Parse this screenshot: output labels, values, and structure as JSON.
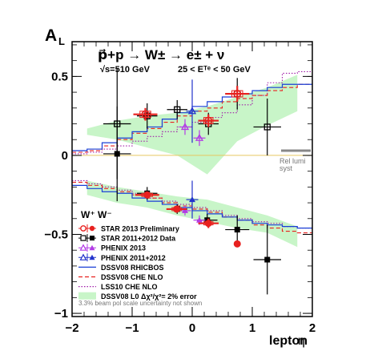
{
  "chart_data": {
    "type": "scatter",
    "title": "p⃗+p → W± → e± + ν",
    "subtitle_left": "√s=510 GeV",
    "subtitle_right": "25 < Eᵀᵉ < 50 GeV",
    "ylabel": "A",
    "ylabel_sub": "L",
    "xlabel": "lepton",
    "xlabel_symbol": "η",
    "xlim": [
      -2,
      2
    ],
    "ylim": [
      -1.02,
      0.72
    ],
    "xticks": [
      -2,
      -1,
      0,
      1,
      2
    ],
    "yticks": [
      -1,
      -0.5,
      0,
      0.5
    ],
    "ytick_labels": [
      "−1",
      "−0.5",
      "0",
      "0.5"
    ],
    "grid": false,
    "legend_placement": "bottom-left",
    "legend_header": "W⁺ W⁻",
    "lumi_label_1": "Rel lumi",
    "lumi_label_2": "syst",
    "footnote": "3.3% beam pol scale uncertainty not shown",
    "colors": {
      "star2013": "#e8211f",
      "star2011": "#000000",
      "phenix2013": "#b33be6",
      "phenix2011": "#2233cc",
      "rhicbos": "#1a3fd6",
      "che_nlo": "#e8211f",
      "lss10": "#a01ca8",
      "dssv_band": "#c8f5c8",
      "zero_line": "#e6c860",
      "lumi_bar": "#888888"
    },
    "legend_entries": [
      {
        "label": "STAR 2013 Preliminary",
        "kind": "star2013"
      },
      {
        "label": "STAR 2011+2012 Data",
        "kind": "star2011"
      },
      {
        "label": "PHENIX 2013",
        "kind": "phenix2013"
      },
      {
        "label": "PHENIX 2011+2012",
        "kind": "phenix2011"
      },
      {
        "label": "DSSV08  RHICBOS",
        "kind": "rhicbos"
      },
      {
        "label": "DSSV08  CHE NLO",
        "kind": "che_nlo"
      },
      {
        "label": "LSS10 CHE NLO",
        "kind": "lss10"
      },
      {
        "label": "DSSV08 L0 Δχ²/χ²= 2% error",
        "kind": "band"
      }
    ],
    "series": [
      {
        "name": "STAR 2013 Preliminary",
        "points": [
          {
            "x": -0.78,
            "y": 0.26,
            "xerr": 0.2,
            "yerr": 0.04,
            "sys": 0.02,
            "sign": "minus"
          },
          {
            "x": 0.27,
            "y": 0.22,
            "xerr": 0.17,
            "yerr": 0.04,
            "sys": 0.02,
            "sign": "minus"
          },
          {
            "x": 0.75,
            "y": 0.39,
            "xerr": 0.2,
            "yerr": 0.05,
            "sys": 0.02,
            "sign": "minus"
          },
          {
            "x": -0.75,
            "y": -0.25,
            "xerr": 0.2,
            "yerr": 0.02,
            "sys": 0.01,
            "sign": "plus"
          },
          {
            "x": -0.26,
            "y": -0.34,
            "xerr": 0.17,
            "yerr": 0.02,
            "sys": 0.01,
            "sign": "plus"
          },
          {
            "x": 0.27,
            "y": -0.43,
            "xerr": 0.17,
            "yerr": 0.03,
            "sys": 0.01,
            "sign": "plus"
          },
          {
            "x": 0.75,
            "y": -0.56,
            "xerr": 0.0,
            "yerr": 0.0,
            "sys": 0.0,
            "sign": "plus"
          }
        ]
      },
      {
        "name": "STAR 2011+2012 Data",
        "points": [
          {
            "x": -1.25,
            "y": 0.2,
            "xerr": 0.23,
            "yerr": 0.35,
            "sign": "minus"
          },
          {
            "x": -0.75,
            "y": 0.25,
            "xerr": 0.17,
            "yerr": 0.08,
            "sign": "minus"
          },
          {
            "x": -0.25,
            "y": 0.29,
            "xerr": 0.17,
            "yerr": 0.06,
            "sign": "minus"
          },
          {
            "x": 0.27,
            "y": 0.2,
            "xerr": 0.17,
            "yerr": 0.07,
            "sign": "minus"
          },
          {
            "x": 0.75,
            "y": 0.39,
            "xerr": 0.2,
            "yerr": 0.1,
            "sign": "minus"
          },
          {
            "x": 1.25,
            "y": 0.18,
            "xerr": 0.23,
            "yerr": 0.18,
            "sign": "minus"
          },
          {
            "x": -1.25,
            "y": 0.01,
            "xerr": 0.23,
            "yerr": 0.3,
            "sign": "plus"
          },
          {
            "x": -0.75,
            "y": -0.24,
            "xerr": 0.17,
            "yerr": 0.04,
            "sign": "plus"
          },
          {
            "x": -0.25,
            "y": -0.34,
            "xerr": 0.17,
            "yerr": 0.03,
            "sign": "plus"
          },
          {
            "x": 0.25,
            "y": -0.41,
            "xerr": 0.17,
            "yerr": 0.04,
            "sign": "plus"
          },
          {
            "x": 0.75,
            "y": -0.47,
            "xerr": 0.2,
            "yerr": 0.09,
            "sign": "plus"
          },
          {
            "x": 1.25,
            "y": -0.66,
            "xerr": 0.23,
            "yerr": 0.22,
            "sign": "plus"
          }
        ]
      },
      {
        "name": "PHENIX 2013",
        "points": [
          {
            "x": -0.12,
            "y": 0.18,
            "xerr": 0.1,
            "yerr": 0.05,
            "sign": "minus"
          },
          {
            "x": 0.12,
            "y": 0.11,
            "xerr": 0.1,
            "yerr": 0.05,
            "sign": "minus"
          },
          {
            "x": -0.12,
            "y": -0.35,
            "xerr": 0.1,
            "yerr": 0.03,
            "sign": "plus"
          },
          {
            "x": 0.12,
            "y": -0.41,
            "xerr": 0.1,
            "yerr": 0.03,
            "sign": "plus"
          }
        ]
      },
      {
        "name": "PHENIX 2011+2012",
        "points": [
          {
            "x": 0.0,
            "y": 0.28,
            "xerr": 0.1,
            "yerr": 0.2,
            "sign": "minus"
          },
          {
            "x": 0.0,
            "y": -0.28,
            "xerr": 0.1,
            "yerr": 0.12,
            "sign": "plus"
          }
        ]
      }
    ],
    "curves": {
      "bin_edges": [
        -2.0,
        -1.75,
        -1.5,
        -1.25,
        -1.0,
        -0.75,
        -0.5,
        -0.25,
        0.0,
        0.25,
        0.5,
        0.75,
        1.0,
        1.25,
        1.5,
        1.75,
        2.0
      ],
      "band_x": [
        -1.75,
        -1.25,
        -0.75,
        -0.25,
        0.25,
        0.75,
        1.25,
        1.75
      ],
      "wminus": {
        "band_lo": [
          0.13,
          0.1,
          0.05,
          0.0,
          -0.12,
          0.09,
          0.19,
          0.28
        ],
        "band_hi": [
          0.17,
          0.22,
          0.25,
          0.27,
          0.31,
          0.37,
          0.43,
          0.51
        ],
        "rhicbos": [
          0.03,
          0.04,
          0.08,
          0.11,
          0.15,
          0.18,
          0.23,
          0.27,
          0.31,
          0.34,
          0.37,
          0.39,
          0.41,
          0.43,
          0.45,
          0.45
        ],
        "che_nlo": [
          0.02,
          0.03,
          0.06,
          0.1,
          0.14,
          0.17,
          0.21,
          0.25,
          0.28,
          0.3,
          0.34,
          0.36,
          0.38,
          0.41,
          0.43,
          0.45
        ],
        "lss10": [
          0.01,
          0.02,
          0.04,
          0.06,
          0.09,
          0.12,
          0.15,
          0.18,
          0.21,
          0.24,
          0.27,
          0.32,
          0.38,
          0.46,
          0.52,
          0.53
        ]
      },
      "wplus": {
        "band_lo": [
          -0.25,
          -0.3,
          -0.33,
          -0.38,
          -0.42,
          -0.46,
          -0.49,
          -0.58
        ],
        "band_hi": [
          -0.16,
          -0.2,
          -0.23,
          -0.26,
          -0.28,
          -0.33,
          -0.38,
          -0.45
        ],
        "rhicbos": [
          -0.19,
          -0.21,
          -0.23,
          -0.24,
          -0.27,
          -0.29,
          -0.31,
          -0.33,
          -0.35,
          -0.37,
          -0.39,
          -0.41,
          -0.43,
          -0.44,
          -0.45,
          -0.46
        ],
        "che_nlo": [
          -0.17,
          -0.19,
          -0.21,
          -0.23,
          -0.25,
          -0.27,
          -0.3,
          -0.32,
          -0.34,
          -0.36,
          -0.39,
          -0.41,
          -0.44,
          -0.46,
          -0.48,
          -0.49
        ],
        "lss10": [
          -0.16,
          -0.18,
          -0.2,
          -0.22,
          -0.24,
          -0.27,
          -0.29,
          -0.31,
          -0.33,
          -0.35,
          -0.38,
          -0.4,
          -0.42,
          -0.43,
          -0.45,
          -0.46
        ]
      }
    }
  }
}
